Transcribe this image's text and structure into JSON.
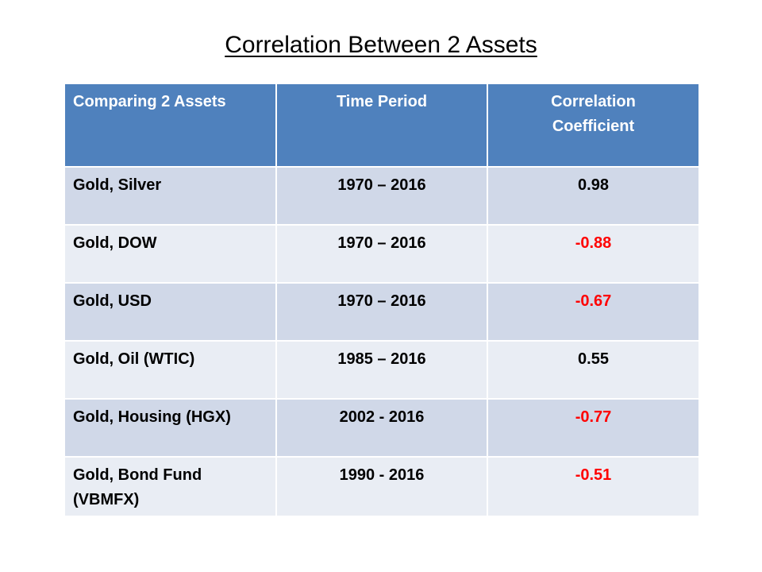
{
  "title": "Correlation Between  2 Assets",
  "table": {
    "headers": [
      "Comparing 2 Assets",
      "Time Period",
      "Correlation\nCoefficient"
    ],
    "rows": [
      {
        "assets": "Gold,  Silver",
        "period": "1970 – 2016",
        "coefficient": "0.98",
        "negative": false
      },
      {
        "assets": "Gold, DOW",
        "period": "1970 – 2016",
        "coefficient": "-0.88",
        "negative": true
      },
      {
        "assets": "Gold, USD",
        "period": "1970 – 2016",
        "coefficient": "-0.67",
        "negative": true
      },
      {
        "assets": "Gold, Oil (WTIC)",
        "period": "1985 – 2016",
        "coefficient": "0.55",
        "negative": false
      },
      {
        "assets": "Gold, Housing (HGX)",
        "period": "2002 - 2016",
        "coefficient": "-0.77",
        "negative": true
      },
      {
        "assets": "Gold, Bond Fund (VBMFX)",
        "period": "1990 - 2016",
        "coefficient": "-0.51",
        "negative": true
      }
    ]
  },
  "colors": {
    "header_bg": "#4f81bd",
    "row_dark": "#d0d8e8",
    "row_light": "#e9edf4",
    "negative_text": "#ff0000"
  }
}
